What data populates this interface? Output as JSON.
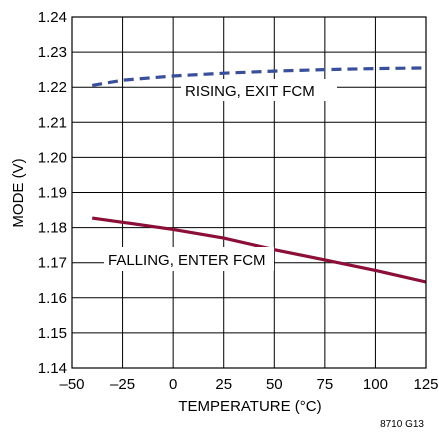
{
  "chart_data": {
    "type": "line",
    "title": "",
    "xlabel": "TEMPERATURE (°C)",
    "ylabel": "MODE (V)",
    "xlim": [
      -50,
      125
    ],
    "ylim": [
      1.14,
      1.24
    ],
    "x_ticks": [
      "–50",
      "–25",
      "0",
      "25",
      "50",
      "75",
      "100",
      "125"
    ],
    "y_ticks": [
      "1.14",
      "1.15",
      "1.16",
      "1.17",
      "1.18",
      "1.19",
      "1.20",
      "1.21",
      "1.22",
      "1.23",
      "1.24"
    ],
    "grid": true,
    "series": [
      {
        "name": "RISING, EXIT FCM",
        "color": "#3a4f9a",
        "style": "dashed",
        "x": [
          -40,
          -25,
          0,
          25,
          50,
          75,
          100,
          125
        ],
        "y": [
          1.2205,
          1.222,
          1.2232,
          1.224,
          1.2246,
          1.225,
          1.2253,
          1.2255
        ]
      },
      {
        "name": "FALLING, ENTER FCM",
        "color": "#8b0f36",
        "style": "solid",
        "x": [
          -40,
          -25,
          0,
          25,
          50,
          75,
          100,
          125
        ],
        "y": [
          1.1827,
          1.1815,
          1.1795,
          1.177,
          1.1737,
          1.1708,
          1.1678,
          1.1645
        ]
      }
    ],
    "annotations": [
      "RISING, EXIT FCM",
      "FALLING, ENTER FCM"
    ]
  },
  "figure_code": "8710 G13"
}
